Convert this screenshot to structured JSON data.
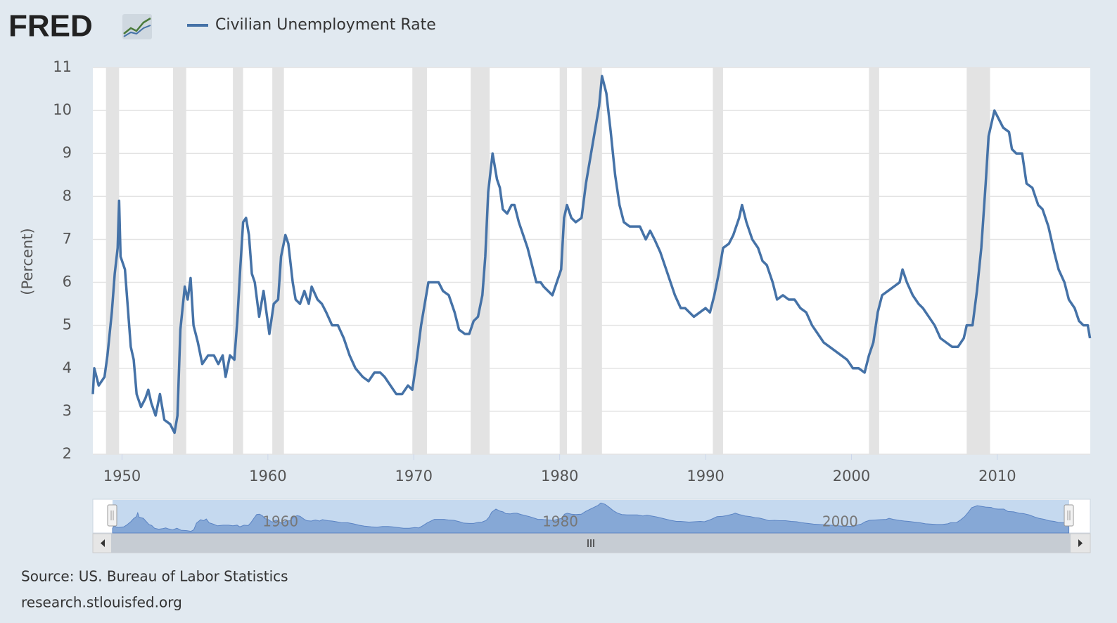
{
  "logo": "FRED",
  "chart_data": {
    "type": "line",
    "y_label": "(Percent)",
    "series": [
      {
        "name": "Civilian Unemployment Rate",
        "color": "#4572a7",
        "values": [
          3.4,
          4.0,
          3.6,
          3.8,
          4.3,
          5.3,
          6.2,
          6.8,
          7.9,
          6.6,
          6.3,
          5.4,
          4.5,
          4.2,
          3.4,
          3.1,
          3.3,
          3.5,
          3.2,
          2.9,
          3.4,
          2.8,
          2.7,
          2.5,
          2.9,
          4.9,
          5.9,
          5.6,
          6.1,
          5.0,
          4.6,
          4.1,
          4.3,
          4.3,
          4.1,
          4.3,
          3.8,
          4.3,
          4.2,
          5.1,
          6.3,
          7.4,
          7.5,
          7.1,
          6.2,
          6.0,
          5.2,
          5.8,
          5.3,
          4.8,
          5.5,
          5.6,
          6.6,
          7.1,
          6.9,
          6.0,
          5.6,
          5.5,
          5.8,
          5.5,
          5.9,
          5.6,
          5.5,
          5.3,
          5.0,
          5.0,
          4.7,
          4.3,
          4.0,
          3.8,
          3.7,
          3.9,
          3.9,
          3.8,
          3.6,
          3.4,
          3.4,
          3.6,
          3.5,
          4.2,
          5.0,
          5.6,
          6.0,
          6.0,
          6.0,
          5.8,
          5.7,
          5.3,
          4.9,
          4.8,
          4.8,
          5.1,
          5.2,
          5.7,
          6.6,
          8.1,
          9.0,
          8.4,
          8.2,
          7.7,
          7.6,
          7.8,
          7.8,
          7.4,
          7.1,
          6.8,
          6.4,
          6.0,
          6.0,
          5.9,
          5.8,
          5.7,
          6.0,
          6.3,
          7.5,
          7.8,
          7.5,
          7.4,
          7.5,
          8.3,
          8.9,
          9.5,
          10.1,
          10.8,
          10.4,
          9.5,
          8.5,
          7.8,
          7.4,
          7.3,
          7.3,
          7.3,
          7.0,
          7.2,
          7.0,
          6.7,
          6.3,
          6.0,
          5.7,
          5.4,
          5.4,
          5.3,
          5.2,
          5.3,
          5.4,
          5.3,
          5.7,
          6.2,
          6.8,
          6.9,
          7.1,
          7.5,
          7.8,
          7.4,
          7.0,
          6.8,
          6.5,
          6.4,
          6.0,
          5.6,
          5.7,
          5.6,
          5.6,
          5.4,
          5.3,
          5.0,
          4.8,
          4.6,
          4.5,
          4.4,
          4.3,
          4.2,
          4.0,
          4.0,
          3.9,
          4.3,
          4.6,
          5.3,
          5.7,
          5.8,
          5.9,
          6.0,
          6.3,
          6.0,
          5.7,
          5.5,
          5.4,
          5.2,
          5.0,
          4.7,
          4.6,
          4.5,
          4.5,
          4.7,
          5.0,
          5.0,
          5.8,
          6.8,
          8.3,
          9.4,
          10.0,
          9.8,
          9.6,
          9.5,
          9.1,
          9.0,
          9.0,
          8.3,
          8.2,
          7.8,
          7.7,
          7.3,
          6.7,
          6.3,
          6.0,
          5.6,
          5.4,
          5.1,
          5.0,
          5.0,
          4.7
        ]
      }
    ],
    "x": [
      1948.0,
      1948.1,
      1948.4,
      1948.8,
      1949.0,
      1949.3,
      1949.5,
      1949.7,
      1949.8,
      1949.9,
      1950.2,
      1950.4,
      1950.6,
      1950.8,
      1951.0,
      1951.3,
      1951.6,
      1951.8,
      1952.0,
      1952.3,
      1952.6,
      1952.9,
      1953.3,
      1953.6,
      1953.8,
      1954.0,
      1954.3,
      1954.5,
      1954.7,
      1954.9,
      1955.2,
      1955.5,
      1955.9,
      1956.3,
      1956.6,
      1956.9,
      1957.1,
      1957.4,
      1957.7,
      1957.9,
      1958.1,
      1958.3,
      1958.5,
      1958.7,
      1958.9,
      1959.1,
      1959.4,
      1959.7,
      1959.9,
      1960.1,
      1960.4,
      1960.7,
      1960.9,
      1961.2,
      1961.4,
      1961.7,
      1961.9,
      1962.2,
      1962.5,
      1962.8,
      1963.0,
      1963.4,
      1963.7,
      1964.0,
      1964.4,
      1964.8,
      1965.2,
      1965.6,
      1966.0,
      1966.5,
      1966.9,
      1967.3,
      1967.7,
      1968.0,
      1968.4,
      1968.8,
      1969.2,
      1969.6,
      1969.9,
      1970.2,
      1970.5,
      1970.8,
      1971.0,
      1971.3,
      1971.7,
      1972.0,
      1972.4,
      1972.8,
      1973.1,
      1973.5,
      1973.8,
      1974.1,
      1974.4,
      1974.7,
      1974.9,
      1975.1,
      1975.4,
      1975.7,
      1975.9,
      1976.1,
      1976.4,
      1976.7,
      1976.9,
      1977.2,
      1977.5,
      1977.8,
      1978.1,
      1978.4,
      1978.7,
      1978.9,
      1979.2,
      1979.5,
      1979.8,
      1980.1,
      1980.3,
      1980.5,
      1980.8,
      1981.1,
      1981.5,
      1981.8,
      1982.1,
      1982.4,
      1982.7,
      1982.9,
      1983.2,
      1983.5,
      1983.8,
      1984.1,
      1984.4,
      1984.8,
      1985.2,
      1985.5,
      1985.9,
      1986.2,
      1986.5,
      1986.9,
      1987.3,
      1987.6,
      1987.9,
      1988.3,
      1988.6,
      1988.9,
      1989.2,
      1989.6,
      1990.0,
      1990.3,
      1990.6,
      1990.9,
      1991.2,
      1991.6,
      1991.9,
      1992.3,
      1992.5,
      1992.8,
      1993.2,
      1993.6,
      1993.9,
      1994.2,
      1994.6,
      1994.9,
      1995.3,
      1995.7,
      1996.1,
      1996.5,
      1996.9,
      1997.3,
      1997.7,
      1998.1,
      1998.5,
      1998.9,
      1999.3,
      1999.7,
      2000.1,
      2000.5,
      2000.9,
      2001.2,
      2001.5,
      2001.8,
      2002.1,
      2002.5,
      2002.9,
      2003.3,
      2003.5,
      2003.8,
      2004.2,
      2004.6,
      2004.9,
      2005.3,
      2005.7,
      2006.1,
      2006.5,
      2006.9,
      2007.3,
      2007.7,
      2007.9,
      2008.3,
      2008.6,
      2008.9,
      2009.2,
      2009.4,
      2009.8,
      2010.1,
      2010.4,
      2010.8,
      2011.0,
      2011.3,
      2011.7,
      2012.0,
      2012.4,
      2012.8,
      2013.1,
      2013.5,
      2013.9,
      2014.2,
      2014.6,
      2014.9,
      2015.3,
      2015.6,
      2015.9,
      2016.2,
      2016.35
    ],
    "xlim": [
      1948.0,
      2016.37
    ],
    "xticks": [
      1950,
      1960,
      1970,
      1980,
      1990,
      2000,
      2010
    ],
    "ylim": [
      2,
      11
    ],
    "yticks": [
      2,
      3,
      4,
      5,
      6,
      7,
      8,
      9,
      10,
      11
    ],
    "grid": true,
    "recessions": [
      [
        1948.9,
        1949.8
      ],
      [
        1953.5,
        1954.4
      ],
      [
        1957.6,
        1958.3
      ],
      [
        1960.3,
        1961.1
      ],
      [
        1969.9,
        1970.9
      ],
      [
        1973.9,
        1975.2
      ],
      [
        1980.0,
        1980.5
      ],
      [
        1981.5,
        1982.9
      ],
      [
        1990.5,
        1991.2
      ],
      [
        2001.2,
        2001.9
      ],
      [
        2007.9,
        2009.5
      ]
    ],
    "navigator": {
      "xticks": [
        1960,
        1980,
        2000
      ]
    },
    "source": "Source: US. Bureau of Labor Statistics",
    "url": "research.stlouisfed.org"
  }
}
